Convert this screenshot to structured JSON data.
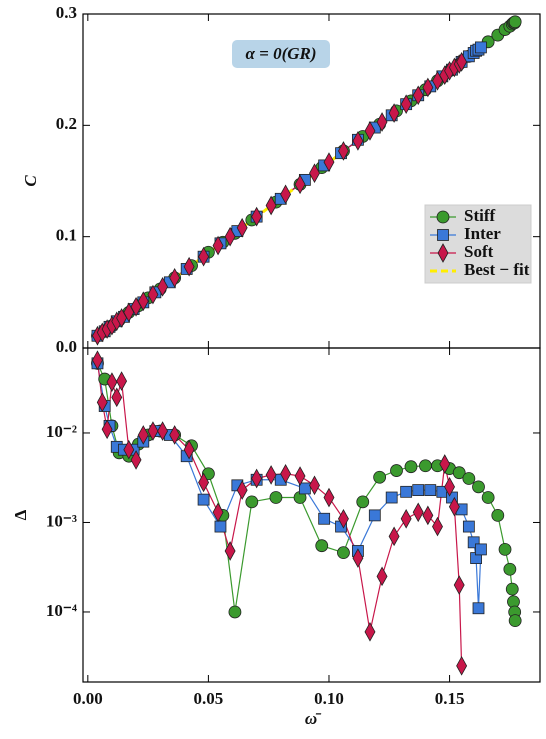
{
  "chart_data": [
    {
      "type": "line",
      "ylabel": "C",
      "annotation": "α = 0(GR)",
      "xlim": [
        -0.002,
        0.1875
      ],
      "ylim": [
        0,
        0.3
      ],
      "yticks": [
        {
          "value": 0,
          "label": "0.0"
        },
        0.1,
        0.2,
        0.3
      ],
      "legend": "right",
      "series": [
        {
          "name": "Stiff",
          "color": "#3b9a2e",
          "marker": "circle",
          "x": [
            0.004,
            0.007,
            0.01,
            0.013,
            0.017,
            0.021,
            0.025,
            0.03,
            0.036,
            0.043,
            0.05,
            0.056,
            0.061,
            0.068,
            0.078,
            0.088,
            0.097,
            0.106,
            0.114,
            0.121,
            0.128,
            0.134,
            0.14,
            0.145,
            0.15,
            0.154,
            0.158,
            0.162,
            0.166,
            0.17,
            0.173,
            0.175,
            0.176,
            0.1765,
            0.177,
            0.1772
          ],
          "values": [
            0.011,
            0.015,
            0.02,
            0.025,
            0.032,
            0.038,
            0.045,
            0.053,
            0.063,
            0.074,
            0.086,
            0.095,
            0.103,
            0.115,
            0.131,
            0.147,
            0.162,
            0.177,
            0.19,
            0.201,
            0.213,
            0.222,
            0.232,
            0.24,
            0.249,
            0.255,
            0.262,
            0.268,
            0.275,
            0.281,
            0.286,
            0.289,
            0.291,
            0.292,
            0.292,
            0.293
          ]
        },
        {
          "name": "Inter",
          "color": "#3a78d8",
          "marker": "square",
          "x": [
            0.004,
            0.007,
            0.009,
            0.012,
            0.015,
            0.019,
            0.023,
            0.028,
            0.034,
            0.041,
            0.048,
            0.055,
            0.062,
            0.07,
            0.08,
            0.09,
            0.098,
            0.105,
            0.112,
            0.119,
            0.126,
            0.132,
            0.137,
            0.142,
            0.147,
            0.151,
            0.155,
            0.158,
            0.16,
            0.161,
            0.162,
            0.163
          ],
          "values": [
            0.011,
            0.015,
            0.019,
            0.024,
            0.028,
            0.035,
            0.041,
            0.05,
            0.059,
            0.071,
            0.082,
            0.094,
            0.105,
            0.118,
            0.134,
            0.151,
            0.164,
            0.175,
            0.187,
            0.198,
            0.209,
            0.219,
            0.227,
            0.235,
            0.244,
            0.25,
            0.257,
            0.262,
            0.265,
            0.267,
            0.268,
            0.27
          ]
        },
        {
          "name": "Soft",
          "color": "#c8174a",
          "marker": "diamond",
          "x": [
            0.004,
            0.006,
            0.008,
            0.01,
            0.012,
            0.014,
            0.017,
            0.02,
            0.023,
            0.027,
            0.031,
            0.036,
            0.042,
            0.048,
            0.054,
            0.059,
            0.064,
            0.07,
            0.076,
            0.082,
            0.088,
            0.094,
            0.1,
            0.106,
            0.112,
            0.117,
            0.122,
            0.127,
            0.132,
            0.137,
            0.141,
            0.145,
            0.148,
            0.15,
            0.152,
            0.154,
            0.155
          ],
          "values": [
            0.011,
            0.014,
            0.017,
            0.02,
            0.024,
            0.027,
            0.032,
            0.037,
            0.042,
            0.048,
            0.055,
            0.063,
            0.073,
            0.082,
            0.092,
            0.1,
            0.108,
            0.118,
            0.128,
            0.138,
            0.147,
            0.157,
            0.167,
            0.177,
            0.186,
            0.195,
            0.203,
            0.211,
            0.219,
            0.227,
            0.234,
            0.24,
            0.245,
            0.249,
            0.252,
            0.255,
            0.257
          ]
        },
        {
          "name": "Best − fit",
          "color": "#ffee00",
          "dashed": true,
          "x": [
            0.003,
            0.177
          ],
          "values": [
            0.009,
            0.292
          ]
        }
      ]
    },
    {
      "type": "line",
      "ylabel": "Δ",
      "xlabel": "ω̄",
      "log": true,
      "xlim": [
        -0.002,
        0.1875
      ],
      "ylim": [
        1.65e-05,
        0.089
      ],
      "xticks": [
        {
          "value": 0,
          "label": "0.00"
        },
        0.05,
        {
          "value": 0.1,
          "label": "0.10"
        },
        0.15
      ],
      "yticks": [
        {
          "value": 0.0001,
          "label": "10⁻⁴"
        },
        {
          "value": 0.001,
          "label": "10⁻³"
        },
        {
          "value": 0.01,
          "label": "10⁻²"
        }
      ],
      "series": [
        {
          "name": "Stiff",
          "color": "#3b9a2e",
          "marker": "circle",
          "x": [
            0.004,
            0.007,
            0.01,
            0.013,
            0.017,
            0.021,
            0.025,
            0.03,
            0.036,
            0.043,
            0.05,
            0.056,
            0.061,
            0.068,
            0.078,
            0.088,
            0.097,
            0.106,
            0.114,
            0.121,
            0.128,
            0.134,
            0.14,
            0.145,
            0.15,
            0.154,
            0.158,
            0.162,
            0.166,
            0.17,
            0.173,
            0.175,
            0.176,
            0.1765,
            0.177,
            0.1772
          ],
          "values": [
            0.06,
            0.04,
            0.012,
            0.006,
            0.0055,
            0.0075,
            0.0095,
            0.0105,
            0.0095,
            0.0072,
            0.0035,
            0.0012,
            0.0001,
            0.0017,
            0.0019,
            0.0019,
            0.00055,
            0.00046,
            0.0017,
            0.0032,
            0.0038,
            0.0042,
            0.0043,
            0.0043,
            0.004,
            0.0036,
            0.0031,
            0.0025,
            0.0019,
            0.0012,
            0.0005,
            0.0003,
            0.00018,
            0.00013,
            0.0001,
            8e-05
          ]
        },
        {
          "name": "Inter",
          "color": "#3a78d8",
          "marker": "square",
          "x": [
            0.004,
            0.007,
            0.009,
            0.012,
            0.015,
            0.019,
            0.023,
            0.028,
            0.034,
            0.041,
            0.048,
            0.055,
            0.062,
            0.07,
            0.08,
            0.09,
            0.098,
            0.105,
            0.112,
            0.119,
            0.126,
            0.132,
            0.137,
            0.142,
            0.147,
            0.151,
            0.155,
            0.158,
            0.16,
            0.161,
            0.162,
            0.163
          ],
          "values": [
            0.06,
            0.02,
            0.012,
            0.007,
            0.0065,
            0.0065,
            0.008,
            0.0105,
            0.0095,
            0.0055,
            0.0018,
            0.0009,
            0.0026,
            0.003,
            0.003,
            0.0024,
            0.0011,
            0.0009,
            0.00048,
            0.0012,
            0.0019,
            0.0022,
            0.0023,
            0.0023,
            0.0022,
            0.0019,
            0.0014,
            0.0009,
            0.0006,
            0.0004,
            0.00011,
            0.0005
          ]
        },
        {
          "name": "Soft",
          "color": "#c8174a",
          "marker": "diamond",
          "x": [
            0.004,
            0.006,
            0.008,
            0.01,
            0.012,
            0.014,
            0.017,
            0.02,
            0.023,
            0.027,
            0.031,
            0.036,
            0.042,
            0.048,
            0.054,
            0.059,
            0.064,
            0.07,
            0.076,
            0.082,
            0.088,
            0.094,
            0.1,
            0.106,
            0.112,
            0.117,
            0.122,
            0.127,
            0.132,
            0.137,
            0.141,
            0.145,
            0.148,
            0.15,
            0.152,
            0.154,
            0.155
          ],
          "values": [
            0.065,
            0.022,
            0.011,
            0.037,
            0.025,
            0.038,
            0.0065,
            0.005,
            0.0095,
            0.0105,
            0.0105,
            0.0095,
            0.0065,
            0.0028,
            0.0013,
            0.00048,
            0.0023,
            0.0031,
            0.0034,
            0.0035,
            0.0033,
            0.0026,
            0.0019,
            0.0011,
            0.0004,
            6e-05,
            0.00025,
            0.0007,
            0.0011,
            0.0013,
            0.0012,
            0.0009,
            0.0045,
            0.0025,
            0.0015,
            0.0002,
            2.5e-05
          ]
        }
      ]
    }
  ]
}
